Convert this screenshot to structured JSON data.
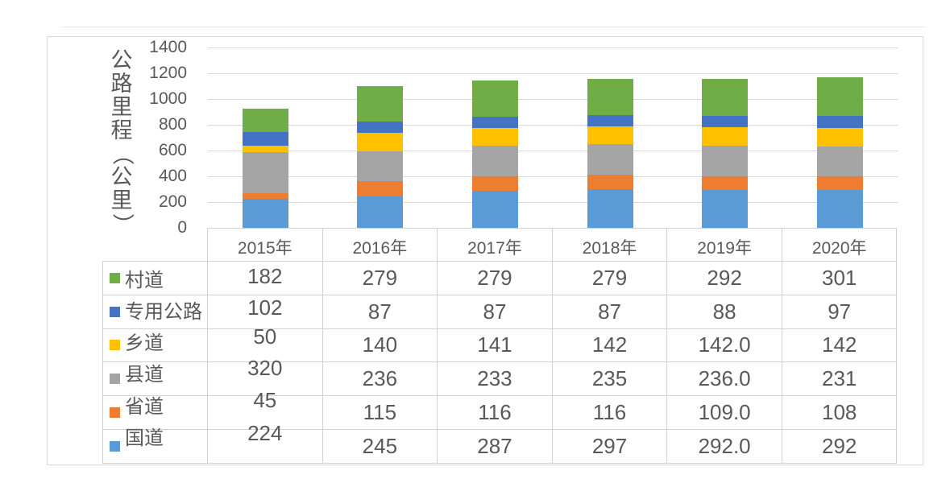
{
  "chart_data": {
    "type": "bar",
    "stacked": true,
    "title": "",
    "xlabel": "",
    "ylabel": "公路里程（公里）",
    "ylim": [
      0,
      1400
    ],
    "yticks": [
      0,
      200,
      400,
      600,
      800,
      1000,
      1200,
      1400
    ],
    "grid": true,
    "legend_position": "data-table-left",
    "categories": [
      "2015年",
      "2016年",
      "2017年",
      "2018年",
      "2019年",
      "2020年"
    ],
    "series": [
      {
        "name": "国道",
        "color": "#5B9BD5",
        "values": [
          224,
          245,
          287,
          297,
          292,
          292
        ]
      },
      {
        "name": "省道",
        "color": "#ED7D31",
        "values": [
          45,
          115,
          116,
          116,
          109,
          108
        ]
      },
      {
        "name": "县道",
        "color": "#A5A5A5",
        "values": [
          320,
          236,
          233,
          235,
          236,
          231
        ]
      },
      {
        "name": "乡道",
        "color": "#FFC000",
        "values": [
          50,
          140,
          141,
          142,
          142,
          142
        ]
      },
      {
        "name": "专用公路",
        "color": "#4472C4",
        "values": [
          102,
          87,
          87,
          87,
          88,
          97
        ]
      },
      {
        "name": "村道",
        "color": "#70AD47",
        "values": [
          182,
          279,
          279,
          279,
          292,
          301
        ]
      }
    ]
  },
  "data_table": {
    "header": [
      "2015年",
      "2016年",
      "2017年",
      "2018年",
      "2019年",
      "2020年"
    ],
    "rows": [
      {
        "label": "村道",
        "color": "#70AD47",
        "values": [
          "182",
          "279",
          "279",
          "279",
          "292",
          "301"
        ]
      },
      {
        "label": "专用公路",
        "color": "#4472C4",
        "values": [
          "102",
          "87",
          "87",
          "87",
          "88",
          "97"
        ]
      },
      {
        "label": "乡道",
        "color": "#FFC000",
        "values": [
          "50",
          "140",
          "141",
          "142",
          "142.0",
          "142"
        ]
      },
      {
        "label": "县道",
        "color": "#A5A5A5",
        "values": [
          "320",
          "236",
          "233",
          "235",
          "236.0",
          "231"
        ]
      },
      {
        "label": "省道",
        "color": "#ED7D31",
        "values": [
          "45",
          "115",
          "116",
          "116",
          "109.0",
          "108"
        ]
      },
      {
        "label": "国道",
        "color": "#5B9BD5",
        "values": [
          "224",
          "245",
          "287",
          "297",
          "292.0",
          "292"
        ]
      }
    ]
  },
  "colors": {
    "text": "#595959",
    "gridline": "#D9D9D9",
    "frame_border": "#D9D9D9",
    "table_border": "#CFD2D6"
  }
}
